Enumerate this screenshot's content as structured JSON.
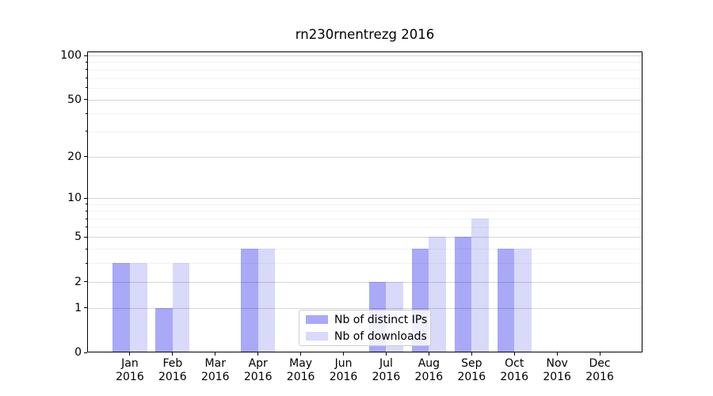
{
  "chart_data": {
    "type": "bar",
    "title": "rn230rnentrezg 2016",
    "categories": [
      "Jan",
      "Feb",
      "Mar",
      "Apr",
      "May",
      "Jun",
      "Jul",
      "Aug",
      "Sep",
      "Oct",
      "Nov",
      "Dec"
    ],
    "x_tick_second_line": "2016",
    "series": [
      {
        "name": "Nb of distinct IPs",
        "color": "#a9a9f8",
        "values": [
          3,
          1,
          0,
          4,
          0,
          0,
          2,
          4,
          5,
          4,
          0,
          0
        ]
      },
      {
        "name": "Nb of downloads",
        "color": "#d9d9fa",
        "values": [
          3,
          3,
          0,
          4,
          0,
          0,
          2,
          5,
          7,
          4,
          0,
          0
        ]
      }
    ],
    "yscale": "log1p",
    "ylim": [
      0,
      100
    ],
    "y_major_ticks": [
      0,
      1,
      2,
      5,
      10,
      20,
      50,
      100
    ],
    "y_minor_ticks": [
      3,
      4,
      6,
      7,
      8,
      9,
      30,
      40,
      60,
      70,
      80,
      90
    ],
    "grid": true,
    "legend_position": "lower center"
  },
  "legend": {
    "items": [
      {
        "label": "Nb of distinct IPs",
        "color": "#a9a9f8"
      },
      {
        "label": "Nb of downloads",
        "color": "#d9d9fa"
      }
    ]
  },
  "colors": {
    "bar_distinct_ips": "#a9a9f8",
    "bar_downloads": "#d9d9fa",
    "grid_major": "#d9d9d9",
    "grid_minor": "#f0f0f0",
    "axis": "#000000",
    "legend_border": "#cccccc",
    "background": "#ffffff"
  }
}
